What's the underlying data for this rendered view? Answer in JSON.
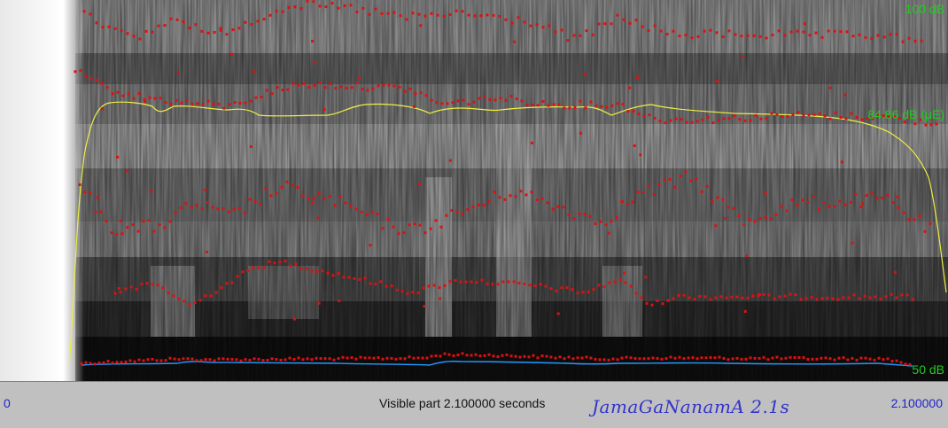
{
  "db_axis": {
    "top": "100 dB",
    "mid": "84.86 dB (μE)",
    "bottom": "50 dB"
  },
  "time_axis": {
    "start": "0",
    "end": "2.100000",
    "visible_part": "Visible part 2.100000 seconds"
  },
  "file_label": "JamaGaNanamA  2.1s",
  "colors": {
    "formant_dots": "#dd1111",
    "intensity_curve": "#eeee44",
    "pitch_curve": "#2299ff",
    "db_labels": "#22cc22",
    "time_labels": "#2222cc"
  }
}
